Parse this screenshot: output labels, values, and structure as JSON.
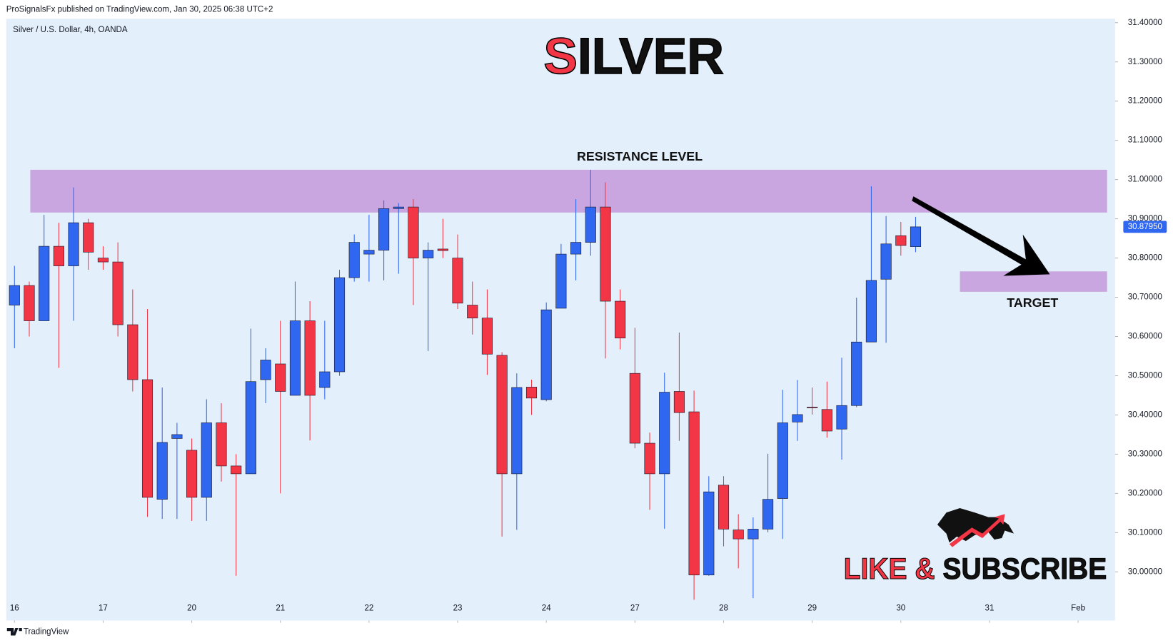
{
  "header": "ProSignalsFx published on TradingView.com, Jan 30, 2025 06:38 UTC+2",
  "footer": "TradingView",
  "chart_data": {
    "type": "candlestick",
    "symbol": "Silver / U.S. Dollar, 4h, OANDA",
    "title": "SILVER",
    "banner": "LIKE & SUBSCRIBE",
    "up_color": "#2f67f0",
    "down_color": "#f23645",
    "x": [
      0,
      1,
      2,
      3,
      4,
      5,
      6,
      7,
      8,
      9,
      10,
      11,
      12,
      13,
      14,
      15,
      16,
      17,
      18,
      19,
      20,
      21,
      22,
      23,
      24,
      25,
      26,
      27,
      28,
      29,
      30,
      31,
      32,
      33,
      34,
      35,
      36,
      37,
      38,
      39,
      40,
      41,
      42,
      43,
      44,
      45,
      46,
      47,
      48,
      49,
      50,
      51,
      52,
      53,
      54,
      55,
      56,
      57,
      58,
      59,
      60,
      61
    ],
    "open": [
      30.68,
      30.73,
      30.64,
      30.83,
      30.78,
      30.89,
      30.8,
      30.79,
      30.63,
      30.49,
      30.185,
      30.34,
      30.31,
      30.19,
      30.38,
      30.27,
      30.25,
      30.49,
      30.53,
      30.45,
      30.64,
      30.47,
      30.51,
      30.75,
      30.81,
      30.82,
      30.926,
      30.93,
      30.8,
      30.823,
      30.8,
      30.68,
      30.647,
      30.552,
      30.25,
      30.471,
      30.439,
      30.672,
      30.81,
      30.84,
      30.93,
      30.69,
      30.506,
      30.328,
      30.25,
      30.46,
      30.408,
      29.992,
      30.221,
      30.107,
      30.084,
      30.109,
      30.187,
      30.382,
      30.42,
      30.414,
      30.364,
      30.424,
      30.586,
      30.746,
      30.857,
      30.829
    ],
    "high": [
      30.78,
      30.74,
      30.91,
      30.89,
      30.98,
      30.9,
      30.83,
      30.84,
      30.72,
      30.67,
      30.47,
      30.38,
      30.34,
      30.44,
      30.43,
      30.3,
      30.62,
      30.57,
      30.64,
      30.74,
      30.69,
      30.64,
      30.77,
      30.86,
      30.91,
      30.947,
      30.94,
      30.95,
      30.84,
      30.9,
      30.86,
      30.74,
      30.72,
      30.56,
      30.506,
      30.49,
      30.687,
      30.836,
      30.95,
      31.025,
      30.993,
      30.72,
      30.622,
      30.355,
      30.508,
      30.61,
      30.462,
      30.244,
      30.244,
      30.147,
      30.139,
      30.301,
      30.464,
      30.489,
      30.47,
      30.485,
      30.546,
      30.699,
      30.983,
      30.907,
      30.892,
      30.905
    ],
    "low": [
      30.57,
      30.6,
      30.64,
      30.52,
      30.64,
      30.77,
      30.77,
      30.6,
      30.46,
      30.14,
      30.135,
      30.135,
      30.13,
      30.13,
      30.23,
      29.99,
      30.25,
      30.43,
      30.2,
      30.45,
      30.335,
      30.44,
      30.5,
      30.74,
      30.74,
      30.743,
      30.76,
      30.68,
      30.563,
      30.8,
      30.67,
      30.605,
      30.502,
      30.09,
      30.107,
      30.4,
      30.435,
      30.672,
      30.743,
      30.806,
      30.544,
      30.567,
      30.315,
      30.158,
      30.11,
      30.334,
      29.929,
      29.99,
      30.065,
      30.009,
      29.933,
      30.101,
      30.084,
      30.334,
      30.401,
      30.342,
      30.286,
      30.42,
      30.586,
      30.584,
      30.806,
      30.815
    ],
    "close": [
      30.73,
      30.64,
      30.83,
      30.78,
      30.89,
      30.815,
      30.79,
      30.63,
      30.49,
      30.19,
      30.33,
      30.35,
      30.19,
      30.38,
      30.27,
      30.25,
      30.485,
      30.54,
      30.46,
      30.64,
      30.45,
      30.51,
      30.75,
      30.84,
      30.82,
      30.926,
      30.93,
      30.8,
      30.82,
      30.819,
      30.685,
      30.647,
      30.555,
      30.25,
      30.47,
      30.443,
      30.668,
      30.81,
      30.84,
      30.93,
      30.69,
      30.596,
      30.328,
      30.25,
      30.458,
      30.406,
      29.992,
      30.204,
      30.109,
      30.084,
      30.109,
      30.185,
      30.38,
      30.401,
      30.418,
      30.359,
      30.424,
      30.586,
      30.743,
      30.836,
      30.832,
      30.8795
    ],
    "last_price": {
      "value": 30.8795,
      "label": "30.87950"
    },
    "xlim": [
      -0.56,
      74.5
    ],
    "xticks": [
      {
        "value": 0,
        "label": "16"
      },
      {
        "value": 6,
        "label": "17"
      },
      {
        "value": 12,
        "label": "20"
      },
      {
        "value": 18,
        "label": "21"
      },
      {
        "value": 24,
        "label": "22"
      },
      {
        "value": 30,
        "label": "23"
      },
      {
        "value": 36,
        "label": "24"
      },
      {
        "value": 42,
        "label": "27"
      },
      {
        "value": 48,
        "label": "28"
      },
      {
        "value": 54,
        "label": "29"
      },
      {
        "value": 60,
        "label": "30"
      },
      {
        "value": 66,
        "label": "31"
      },
      {
        "value": 72,
        "label": "Feb"
      }
    ],
    "ylim": [
      29.876,
      31.41
    ],
    "yticks": [
      {
        "value": 30.0,
        "label": "30.00000"
      },
      {
        "value": 30.1,
        "label": "30.10000"
      },
      {
        "value": 30.2,
        "label": "30.20000"
      },
      {
        "value": 30.3,
        "label": "30.30000"
      },
      {
        "value": 30.4,
        "label": "30.40000"
      },
      {
        "value": 30.5,
        "label": "30.50000"
      },
      {
        "value": 30.6,
        "label": "30.60000"
      },
      {
        "value": 30.7,
        "label": "30.70000"
      },
      {
        "value": 30.8,
        "label": "30.80000"
      },
      {
        "value": 30.9,
        "label": "30.90000"
      },
      {
        "value": 31.0,
        "label": "31.00000"
      },
      {
        "value": 31.1,
        "label": "31.10000"
      },
      {
        "value": 31.2,
        "label": "31.20000"
      },
      {
        "value": 31.3,
        "label": "31.30000"
      },
      {
        "value": 31.4,
        "label": "31.40000"
      }
    ],
    "grid": false,
    "zones": [
      {
        "label": "RESISTANCE LEVEL",
        "color": "#c9a6df",
        "x": [
          1.07,
          73.96
        ],
        "y": [
          30.916,
          31.025
        ]
      },
      {
        "label": "TARGET",
        "color": "#c9a6df",
        "x": [
          64,
          73.96
        ],
        "y": [
          30.714,
          30.766
        ]
      }
    ]
  }
}
